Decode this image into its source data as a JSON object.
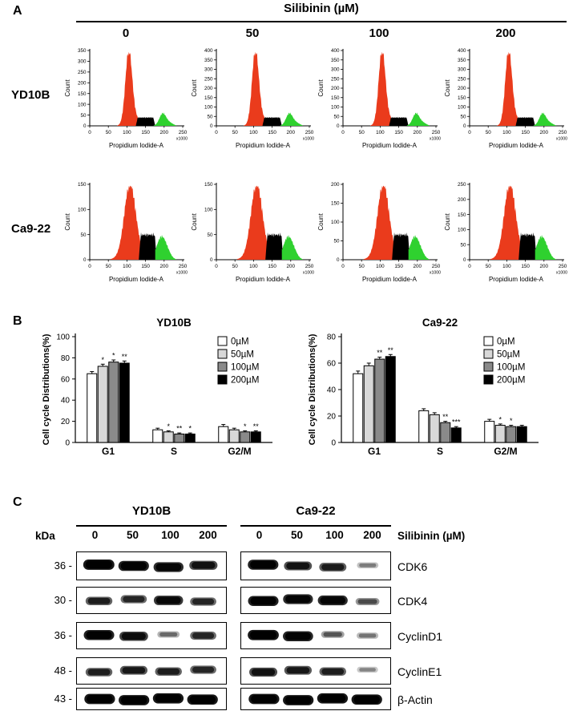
{
  "panels": {
    "A": {
      "label": "A",
      "title": "Silibinin (µM)",
      "doses": [
        "0",
        "50",
        "100",
        "200"
      ],
      "xlabel": "Propidium Iodide-A",
      "ylabel": "Count",
      "x_note": "x1000",
      "x_max": 250,
      "x_ticks": [
        0,
        50,
        100,
        150,
        200,
        250
      ],
      "colors": {
        "g1": "#ea3b1c",
        "s": "#000000",
        "g2": "#2fd12f"
      },
      "rows": [
        {
          "cell_line": "YD10B",
          "shape": {
            "g1_c": 105,
            "g1_s": 9,
            "g1_h": 0.95,
            "s_from": 124,
            "s_to": 176,
            "s_h": 0.11,
            "g2_c": 196,
            "g2_s": 9,
            "g2_h": 0.16
          },
          "plots": [
            {
              "ymax": 350,
              "yticks": [
                0,
                50,
                100,
                150,
                200,
                250,
                300,
                350
              ]
            },
            {
              "ymax": 400,
              "yticks": [
                0,
                50,
                100,
                150,
                200,
                250,
                300,
                350,
                400
              ]
            },
            {
              "ymax": 400,
              "yticks": [
                0,
                50,
                100,
                150,
                200,
                250,
                300,
                350,
                400
              ]
            },
            {
              "ymax": 400,
              "yticks": [
                0,
                50,
                100,
                150,
                200,
                250,
                300,
                350,
                400
              ]
            }
          ]
        },
        {
          "cell_line": "Ca9-22",
          "shape": {
            "g1_c": 108,
            "g1_s": 15,
            "g1_h": 0.93,
            "s_from": 132,
            "s_to": 180,
            "s_h": 0.33,
            "g2_c": 193,
            "g2_s": 13,
            "g2_h": 0.3
          },
          "plots": [
            {
              "ymax": 150,
              "yticks": [
                0,
                50,
                100,
                150
              ]
            },
            {
              "ymax": 150,
              "yticks": [
                0,
                50,
                100,
                150
              ]
            },
            {
              "ymax": 200,
              "yticks": [
                0,
                50,
                100,
                150,
                200
              ]
            },
            {
              "ymax": 250,
              "yticks": [
                0,
                50,
                100,
                150,
                200,
                250
              ]
            }
          ]
        }
      ]
    },
    "B": {
      "label": "B"
    },
    "C": {
      "label": "C",
      "groups": [
        "YD10B",
        "Ca9-22"
      ],
      "kda_label": "kDa",
      "silibinin_label": "Silibinin (µM)",
      "doses": [
        "0",
        "50",
        "100",
        "200"
      ],
      "blots": [
        {
          "protein": "CDK6",
          "kda": "36 -",
          "lanes": [
            [
              0.95,
              0.9,
              0.85,
              0.7
            ],
            [
              0.9,
              0.68,
              0.62,
              0.15
            ]
          ]
        },
        {
          "protein": "CDK4",
          "kda": "30 -",
          "lanes": [
            [
              0.6,
              0.55,
              0.8,
              0.55
            ],
            [
              0.9,
              0.85,
              0.85,
              0.35
            ]
          ]
        },
        {
          "protein": "CyclinD1",
          "kda": "36 -",
          "lanes": [
            [
              0.9,
              0.75,
              0.22,
              0.55
            ],
            [
              0.95,
              0.88,
              0.3,
              0.18
            ]
          ]
        },
        {
          "protein": "CyclinE1",
          "kda": "48 -",
          "lanes": [
            [
              0.6,
              0.65,
              0.6,
              0.55
            ],
            [
              0.7,
              0.65,
              0.6,
              0.12
            ]
          ]
        },
        {
          "protein": "β-Actin",
          "kda": "43 -",
          "lanes": [
            [
              0.95,
              0.95,
              0.95,
              0.95
            ],
            [
              0.95,
              0.95,
              0.95,
              0.95
            ]
          ]
        }
      ]
    }
  },
  "chart_data": [
    {
      "type": "bar",
      "panel": "B",
      "title": "YD10B",
      "ylabel": "Cell cycle Distributions(%)",
      "categories": [
        "G1",
        "S",
        "G2/M"
      ],
      "ylim": [
        0,
        100
      ],
      "yticks": [
        0,
        20,
        40,
        60,
        80,
        100
      ],
      "legend_position": "top-right",
      "series": [
        {
          "name": "0µM",
          "color": "#ffffff",
          "values": [
            65,
            12,
            15
          ],
          "errors": [
            2,
            1.5,
            2
          ],
          "sig": [
            "",
            "",
            ""
          ]
        },
        {
          "name": "50µM",
          "color": "#d8d8d8",
          "values": [
            72,
            10,
            12
          ],
          "errors": [
            2,
            1,
            1.5
          ],
          "sig": [
            "*",
            "*",
            ""
          ]
        },
        {
          "name": "100µM",
          "color": "#8a8a8a",
          "values": [
            76,
            8,
            10
          ],
          "errors": [
            2,
            1,
            1
          ],
          "sig": [
            "*",
            "**",
            "*"
          ]
        },
        {
          "name": "200µM",
          "color": "#000000",
          "values": [
            75,
            8,
            10
          ],
          "errors": [
            2,
            1,
            1
          ],
          "sig": [
            "**",
            "*",
            "**"
          ]
        }
      ]
    },
    {
      "type": "bar",
      "panel": "B",
      "title": "Ca9-22",
      "ylabel": "Cell cycle Distributions(%)",
      "categories": [
        "G1",
        "S",
        "G2/M"
      ],
      "ylim": [
        0,
        80
      ],
      "yticks": [
        0,
        20,
        40,
        60,
        80
      ],
      "legend_position": "top-right",
      "series": [
        {
          "name": "0µM",
          "color": "#ffffff",
          "values": [
            52,
            24,
            16
          ],
          "errors": [
            2,
            1.5,
            1.5
          ],
          "sig": [
            "",
            "",
            ""
          ]
        },
        {
          "name": "50µM",
          "color": "#d8d8d8",
          "values": [
            58,
            21,
            13
          ],
          "errors": [
            2,
            1.5,
            1
          ],
          "sig": [
            "",
            "",
            "*"
          ]
        },
        {
          "name": "100µM",
          "color": "#8a8a8a",
          "values": [
            63,
            15,
            12
          ],
          "errors": [
            1.5,
            1,
            1
          ],
          "sig": [
            "**",
            "**",
            "*"
          ]
        },
        {
          "name": "200µM",
          "color": "#000000",
          "values": [
            65,
            11,
            12
          ],
          "errors": [
            1.5,
            1,
            1
          ],
          "sig": [
            "**",
            "***",
            ""
          ]
        }
      ]
    }
  ]
}
